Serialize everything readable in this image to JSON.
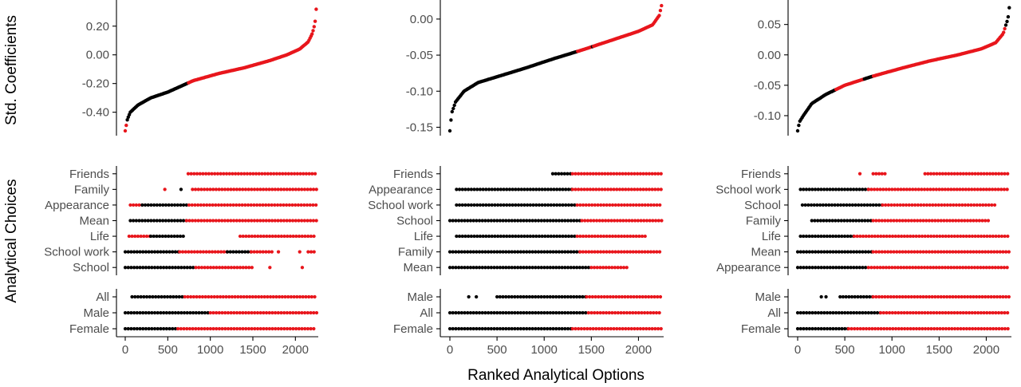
{
  "figure": {
    "ylabel_top": "Std. Coefficients",
    "ylabel_bottom": "Analytical Choices",
    "xlabel": "Ranked Analytical Options"
  },
  "colors": {
    "significant": "#e8161c",
    "nonsignificant": "#000000",
    "axis": "#000000",
    "tick_text": "#4d4d4d"
  },
  "chart_data": [
    {
      "type": "scatter",
      "description": "specification curve, panel 1",
      "n_options": 2250,
      "xlim": [
        0,
        2250
      ],
      "xticks": [
        0,
        500,
        1000,
        1500,
        2000
      ],
      "coef": {
        "ylim": [
          -0.53,
          0.36
        ],
        "yticks": [
          -0.4,
          -0.2,
          0.0,
          0.2
        ],
        "ytick_labels": [
          "-0.40",
          "-0.20",
          "0.00",
          "0.20"
        ],
        "curve": [
          [
            0,
            -0.53
          ],
          [
            25,
            -0.45
          ],
          [
            60,
            -0.4
          ],
          [
            150,
            -0.35
          ],
          [
            300,
            -0.3
          ],
          [
            500,
            -0.26
          ],
          [
            800,
            -0.18
          ],
          [
            1100,
            -0.13
          ],
          [
            1400,
            -0.09
          ],
          [
            1700,
            -0.04
          ],
          [
            1900,
            0.0
          ],
          [
            2050,
            0.04
          ],
          [
            2150,
            0.09
          ],
          [
            2200,
            0.15
          ],
          [
            2230,
            0.22
          ],
          [
            2250,
            0.36
          ]
        ],
        "sig_ranges": [
          [
            0,
            20
          ],
          [
            740,
            2250
          ]
        ]
      },
      "choices": {
        "rows": [
          "Friends",
          "Family",
          "Appearance",
          "Mean",
          "Life",
          "School work",
          "School"
        ],
        "segments": {
          "Friends": [
            [
              740,
              2250,
              "sig"
            ]
          ],
          "Family": [
            [
              465,
              475,
              "sig"
            ],
            [
              655,
              665,
              "blk"
            ],
            [
              790,
              2250,
              "sig"
            ]
          ],
          "Appearance": [
            [
              60,
              200,
              "sig"
            ],
            [
              200,
              750,
              "blk"
            ],
            [
              750,
              2250,
              "sig"
            ]
          ],
          "Mean": [
            [
              60,
              720,
              "blk"
            ],
            [
              720,
              2250,
              "sig"
            ]
          ],
          "Life": [
            [
              45,
              300,
              "sig"
            ],
            [
              300,
              700,
              "blk"
            ],
            [
              1350,
              2250,
              "sig"
            ]
          ],
          "School work": [
            [
              0,
              640,
              "blk"
            ],
            [
              640,
              1200,
              "sig"
            ],
            [
              1200,
              1480,
              "blk"
            ],
            [
              1480,
              1750,
              "sig"
            ],
            [
              1800,
              1810,
              "sig"
            ],
            [
              2050,
              2060,
              "sig"
            ],
            [
              2150,
              2250,
              "sig"
            ]
          ],
          "School": [
            [
              0,
              830,
              "blk"
            ],
            [
              830,
              1520,
              "sig"
            ],
            [
              1700,
              1710,
              "sig"
            ],
            [
              2080,
              2090,
              "sig"
            ]
          ]
        }
      },
      "groups": {
        "rows": [
          "All",
          "Male",
          "Female"
        ],
        "segments": {
          "All": [
            [
              80,
              700,
              "blk"
            ],
            [
              700,
              2250,
              "sig"
            ]
          ],
          "Male": [
            [
              0,
              1000,
              "blk"
            ],
            [
              1000,
              2250,
              "sig"
            ]
          ],
          "Female": [
            [
              0,
              620,
              "blk"
            ],
            [
              620,
              2250,
              "sig"
            ]
          ]
        }
      }
    },
    {
      "type": "scatter",
      "description": "specification curve, panel 2",
      "n_options": 2250,
      "xlim": [
        0,
        2250
      ],
      "xticks": [
        0,
        500,
        1000,
        1500,
        2000
      ],
      "coef": {
        "ylim": [
          -0.155,
          0.022
        ],
        "yticks": [
          -0.15,
          -0.1,
          -0.05,
          0.0
        ],
        "ytick_labels": [
          "-0.15",
          "-0.10",
          "-0.05",
          "0.00"
        ],
        "curve": [
          [
            0,
            -0.155
          ],
          [
            20,
            -0.13
          ],
          [
            60,
            -0.115
          ],
          [
            150,
            -0.1
          ],
          [
            300,
            -0.088
          ],
          [
            500,
            -0.08
          ],
          [
            800,
            -0.068
          ],
          [
            1100,
            -0.055
          ],
          [
            1400,
            -0.043
          ],
          [
            1700,
            -0.03
          ],
          [
            2000,
            -0.017
          ],
          [
            2150,
            -0.008
          ],
          [
            2220,
            0.005
          ],
          [
            2250,
            0.022
          ]
        ],
        "sig_ranges": [
          [
            1350,
            1500
          ],
          [
            1520,
            2250
          ]
        ]
      },
      "choices": {
        "rows": [
          "Friends",
          "Appearance",
          "School work",
          "School",
          "Life",
          "Family",
          "Mean"
        ],
        "segments": {
          "Friends": [
            [
              1090,
              1300,
              "blk"
            ],
            [
              1300,
              2250,
              "sig"
            ]
          ],
          "Appearance": [
            [
              70,
              1300,
              "blk"
            ],
            [
              1300,
              2250,
              "sig"
            ]
          ],
          "School work": [
            [
              70,
              1350,
              "blk"
            ],
            [
              1350,
              2250,
              "sig"
            ]
          ],
          "School": [
            [
              0,
              1400,
              "blk"
            ],
            [
              1400,
              2250,
              "sig"
            ]
          ],
          "Life": [
            [
              70,
              1350,
              "blk"
            ],
            [
              1350,
              2100,
              "sig"
            ]
          ],
          "Family": [
            [
              0,
              1380,
              "blk"
            ],
            [
              1380,
              2250,
              "sig"
            ]
          ],
          "Mean": [
            [
              0,
              1500,
              "blk"
            ],
            [
              1500,
              1900,
              "sig"
            ]
          ]
        }
      },
      "groups": {
        "rows": [
          "Male",
          "All",
          "Female"
        ],
        "segments": {
          "Male": [
            [
              200,
              210,
              "blk"
            ],
            [
              280,
              290,
              "blk"
            ],
            [
              500,
              1450,
              "blk"
            ],
            [
              1450,
              2250,
              "sig"
            ]
          ],
          "All": [
            [
              0,
              1470,
              "blk"
            ],
            [
              1470,
              2250,
              "sig"
            ]
          ],
          "Female": [
            [
              0,
              1300,
              "blk"
            ],
            [
              1300,
              2250,
              "sig"
            ]
          ]
        }
      }
    },
    {
      "type": "scatter",
      "description": "specification curve, panel 3",
      "n_options": 2250,
      "xlim": [
        0,
        2250
      ],
      "xticks": [
        0,
        500,
        1000,
        1500,
        2000
      ],
      "coef": {
        "ylim": [
          -0.125,
          0.085
        ],
        "yticks": [
          -0.1,
          -0.05,
          0.0,
          0.05
        ],
        "ytick_labels": [
          "-0.10",
          "-0.05",
          "0.00",
          "0.05"
        ],
        "curve": [
          [
            0,
            -0.125
          ],
          [
            20,
            -0.11
          ],
          [
            60,
            -0.1
          ],
          [
            150,
            -0.08
          ],
          [
            300,
            -0.065
          ],
          [
            500,
            -0.05
          ],
          [
            800,
            -0.035
          ],
          [
            1100,
            -0.022
          ],
          [
            1400,
            -0.01
          ],
          [
            1700,
            0.0
          ],
          [
            1950,
            0.01
          ],
          [
            2100,
            0.02
          ],
          [
            2180,
            0.035
          ],
          [
            2230,
            0.06
          ],
          [
            2250,
            0.085
          ]
        ],
        "sig_ranges": [
          [
            400,
            700
          ],
          [
            800,
            2200
          ]
        ]
      },
      "choices": {
        "rows": [
          "Friends",
          "School work",
          "School",
          "Family",
          "Life",
          "Mean",
          "Appearance"
        ],
        "segments": {
          "Friends": [
            [
              660,
              670,
              "sig"
            ],
            [
              800,
              950,
              "sig"
            ],
            [
              1350,
              2250,
              "sig"
            ]
          ],
          "School work": [
            [
              30,
              750,
              "blk"
            ],
            [
              750,
              2250,
              "sig"
            ]
          ],
          "School": [
            [
              50,
              900,
              "blk"
            ],
            [
              900,
              2100,
              "sig"
            ]
          ],
          "Family": [
            [
              150,
              800,
              "blk"
            ],
            [
              800,
              2050,
              "sig"
            ]
          ],
          "Life": [
            [
              30,
              600,
              "blk"
            ],
            [
              600,
              2250,
              "sig"
            ]
          ],
          "Mean": [
            [
              0,
              800,
              "blk"
            ],
            [
              800,
              2250,
              "sig"
            ]
          ],
          "Appearance": [
            [
              0,
              750,
              "blk"
            ],
            [
              750,
              2250,
              "sig"
            ]
          ]
        }
      },
      "groups": {
        "rows": [
          "Male",
          "All",
          "Female"
        ],
        "segments": {
          "Male": [
            [
              250,
              260,
              "blk"
            ],
            [
              300,
              310,
              "blk"
            ],
            [
              450,
              800,
              "blk"
            ],
            [
              800,
              2250,
              "sig"
            ]
          ],
          "All": [
            [
              0,
              880,
              "blk"
            ],
            [
              880,
              2250,
              "sig"
            ]
          ],
          "Female": [
            [
              0,
              540,
              "blk"
            ],
            [
              540,
              2250,
              "sig"
            ]
          ]
        }
      }
    }
  ]
}
